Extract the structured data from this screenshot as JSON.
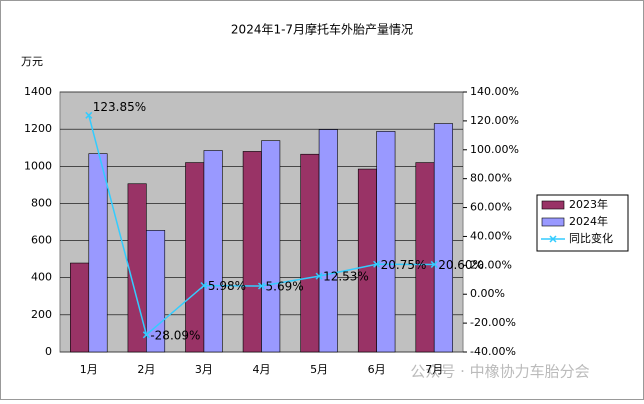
{
  "chart_data": {
    "type": "bar",
    "title": "2024年1-7月摩托车外胎产量情况",
    "y_label": "万元",
    "categories": [
      "1月",
      "2月",
      "3月",
      "4月",
      "5月",
      "6月",
      "7月"
    ],
    "series": [
      {
        "name": "2023年",
        "color": "#993366",
        "values": [
          479,
          906,
          1020,
          1080,
          1065,
          985,
          1020
        ]
      },
      {
        "name": "2024年",
        "color": "#9999ff",
        "values": [
          1068,
          655,
          1085,
          1138,
          1198,
          1188,
          1230
        ]
      },
      {
        "name": "同比变化",
        "type": "line",
        "axis": "y2",
        "color": "#33ccff",
        "values": [
          123.85,
          -28.09,
          5.98,
          5.69,
          12.53,
          20.75,
          20.6
        ],
        "value_labels": [
          "123.85%",
          "-28.09%",
          "5.98%",
          "5.69%",
          "12.53%",
          "20.75%",
          "20.60%"
        ]
      }
    ],
    "ylim": [
      0,
      1400
    ],
    "yticks": [
      0,
      200,
      400,
      600,
      800,
      1000,
      1200,
      1400
    ],
    "y2lim": [
      -40,
      140
    ],
    "y2ticks": [
      {
        "value": -40,
        "label": "-40.00%"
      },
      {
        "value": -20,
        "label": "-20.00%"
      },
      {
        "value": 0,
        "label": "0.00%"
      },
      {
        "value": 20,
        "label": "20.00%"
      },
      {
        "value": 40,
        "label": "40.00%"
      },
      {
        "value": 60,
        "label": "60.00%"
      },
      {
        "value": 80,
        "label": "80.00%"
      },
      {
        "value": 100,
        "label": "100.00%"
      },
      {
        "value": 120,
        "label": "120.00%"
      },
      {
        "value": 140,
        "label": "140.00%"
      }
    ],
    "grid": true,
    "legend": "right",
    "watermark": "公众号 · 中橡协力车胎分会"
  }
}
